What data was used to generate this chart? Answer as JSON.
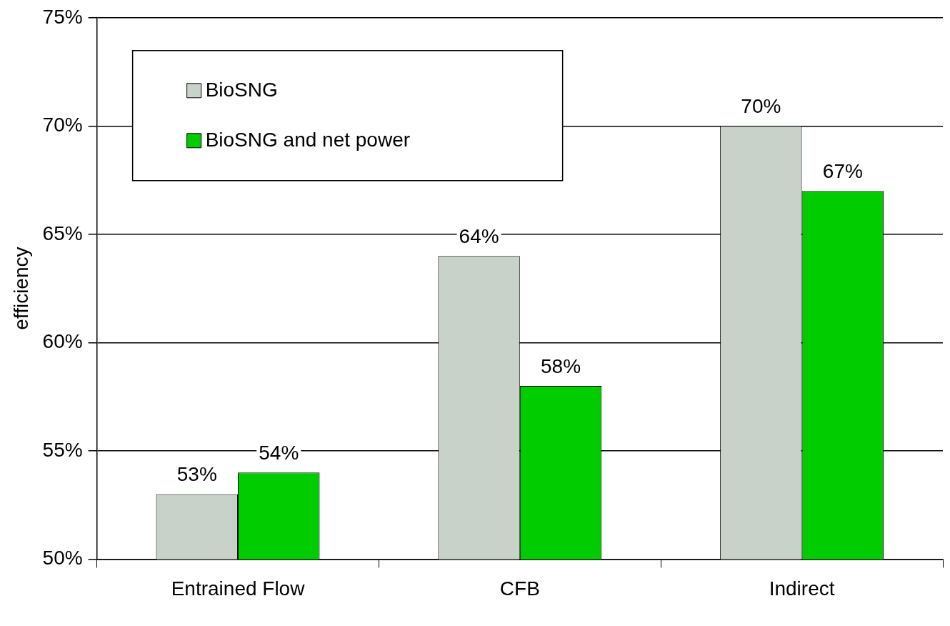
{
  "chart_data": {
    "type": "bar",
    "ylabel": "efficiency",
    "categories": [
      "Entrained Flow",
      "CFB",
      "Indirect"
    ],
    "series": [
      {
        "name": "BioSNG",
        "color": "#c8d2c8",
        "values": [
          53,
          64,
          70
        ],
        "value_labels": [
          "53%",
          "64%",
          "70%"
        ]
      },
      {
        "name": "BioSNG and net power",
        "color": "#00cc00",
        "values": [
          54,
          58,
          67
        ],
        "value_labels": [
          "54%",
          "58%",
          "67%"
        ]
      }
    ],
    "ylim": [
      50,
      75
    ],
    "yticks": [
      {
        "value": 50,
        "label": "50%"
      },
      {
        "value": 55,
        "label": "55%"
      },
      {
        "value": 60,
        "label": "60%"
      },
      {
        "value": 65,
        "label": "65%"
      },
      {
        "value": 70,
        "label": "70%"
      },
      {
        "value": 75,
        "label": "75%"
      }
    ],
    "grid": "y",
    "legend": "top left"
  }
}
